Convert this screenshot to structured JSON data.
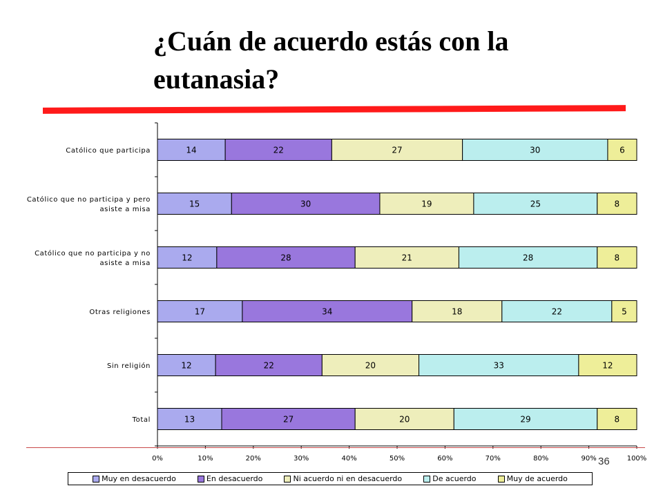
{
  "slide": {
    "title": "¿Cuán de acuerdo estás con la eutanasia?",
    "page_number": "36"
  },
  "chart_data": {
    "type": "bar",
    "orientation": "horizontal",
    "stacking": "percent",
    "categories": [
      [
        "Católico que participa"
      ],
      [
        "Católico que no participa y pero",
        "asiste a misa"
      ],
      [
        "Católico que no participa y no",
        "asiste a misa"
      ],
      [
        "Otras religiones"
      ],
      [
        "Sin religión"
      ],
      [
        "Total"
      ]
    ],
    "series": [
      {
        "name": "Muy en desacuerdo",
        "color": "#aaaaee",
        "values": [
          14,
          15,
          12,
          17,
          12,
          13
        ]
      },
      {
        "name": "En desacuerdo",
        "color": "#9977dd",
        "values": [
          22,
          30,
          28,
          34,
          22,
          27
        ]
      },
      {
        "name": "Ni acuerdo ni en desacuerdo",
        "color": "#eeeebb",
        "values": [
          27,
          19,
          21,
          18,
          20,
          20
        ]
      },
      {
        "name": "De acuerdo",
        "color": "#bbeeee",
        "values": [
          30,
          25,
          28,
          22,
          33,
          29
        ]
      },
      {
        "name": "Muy de acuerdo",
        "color": "#eeee99",
        "values": [
          6,
          8,
          8,
          5,
          12,
          8
        ]
      }
    ],
    "x_ticks": [
      "0%",
      "10%",
      "20%",
      "30%",
      "40%",
      "50%",
      "60%",
      "70%",
      "80%",
      "90%",
      "100%"
    ],
    "xlim": [
      0,
      100
    ],
    "grid": false,
    "legend_position": "bottom"
  }
}
